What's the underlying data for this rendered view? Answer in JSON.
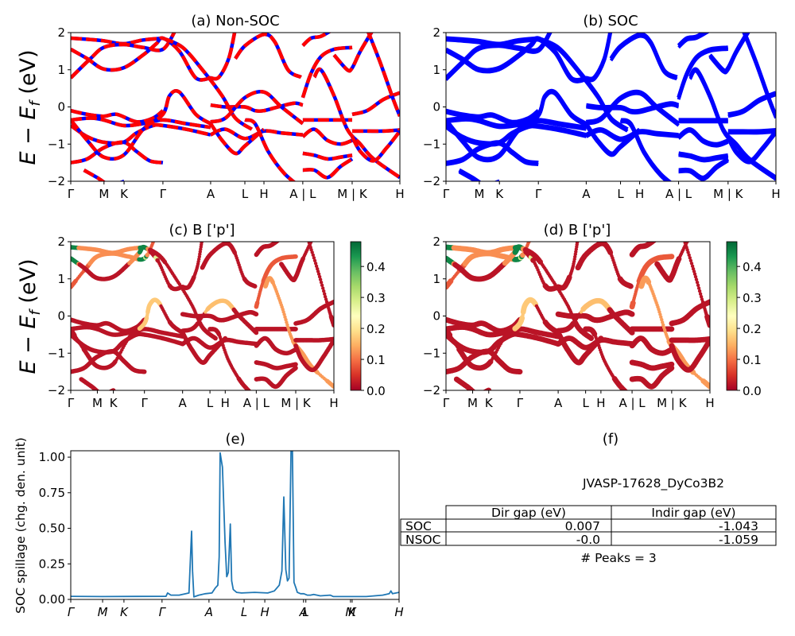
{
  "figure": {
    "material_id": "JVASP-17628_DyCo3B2",
    "peaks_text": "# Peaks = 3"
  },
  "chart_data": [
    {
      "id": "a",
      "type": "line",
      "title": "(a) Non-SOC",
      "ylabel": "E − E_f (eV)",
      "ylim": [
        -2,
        2
      ],
      "yticks": [
        -2,
        -1,
        0,
        1,
        2
      ],
      "ytick_labels": [
        "−2",
        "−1",
        "0",
        "1",
        "2"
      ],
      "xticks": [
        0,
        0.101,
        0.162,
        0.28,
        0.425,
        0.529,
        0.587,
        0.705,
        0.855,
        1.0
      ],
      "xtick_labels": [
        "Γ",
        "M",
        "K",
        "Γ",
        "A",
        "L",
        "H",
        "A | L",
        "M | K",
        "H"
      ],
      "style": "dashed red over blue",
      "colors": {
        "primary": "#ff0000",
        "secondary": "#0000ff"
      },
      "bands": [
        {
          "x": [
            0,
            0.05,
            0.1,
            0.16,
            0.22,
            0.28
          ],
          "y": [
            1.85,
            1.82,
            1.78,
            1.7,
            1.8,
            1.85
          ]
        },
        {
          "x": [
            0,
            0.06,
            0.1,
            0.16,
            0.22,
            0.28,
            0.32
          ],
          "y": [
            0.78,
            1.3,
            1.6,
            1.68,
            1.6,
            1.55,
            2.1
          ]
        },
        {
          "x": [
            0,
            0.05,
            0.1,
            0.16,
            0.22,
            0.26,
            0.28,
            0.33,
            0.38,
            0.425
          ],
          "y": [
            1.55,
            1.3,
            1.02,
            1.05,
            1.4,
            1.7,
            1.85,
            1.5,
            0.78,
            0.78
          ]
        },
        {
          "x": [
            0.28,
            0.34,
            0.4,
            0.46,
            0.5,
            0.55
          ],
          "y": [
            1.85,
            1.6,
            1.0,
            0.3,
            -0.3,
            -0.6
          ]
        },
        {
          "x": [
            0.425,
            0.45,
            0.48,
            0.5
          ],
          "y": [
            0.78,
            0.8,
            1.3,
            2.1
          ]
        },
        {
          "x": [
            0.5,
            0.53,
            0.587,
            0.62,
            0.66,
            0.7
          ],
          "y": [
            1.3,
            1.65,
            1.95,
            1.75,
            1.0,
            0.8
          ]
        },
        {
          "x": [
            0,
            0.05,
            0.1,
            0.14,
            0.2,
            0.25,
            0.28
          ],
          "y": [
            -0.1,
            -0.2,
            -0.25,
            -0.2,
            -0.4,
            -0.3,
            -0.1
          ]
        },
        {
          "x": [
            0,
            0.06,
            0.1,
            0.16,
            0.22,
            0.28,
            0.35,
            0.425
          ],
          "y": [
            -0.35,
            -0.3,
            -0.35,
            -0.5,
            -0.45,
            -0.35,
            -0.45,
            -0.55
          ]
        },
        {
          "x": [
            0,
            0.05,
            0.1,
            0.16,
            0.2,
            0.25,
            0.28,
            0.35,
            0.425
          ],
          "y": [
            -0.5,
            -0.8,
            -0.95,
            -0.95,
            -0.7,
            -0.5,
            -0.5,
            -0.6,
            -0.75
          ]
        },
        {
          "x": [
            0,
            0.05,
            0.1,
            0.16,
            0.22,
            0.28,
            0.3,
            0.33,
            0.38,
            0.425
          ],
          "y": [
            -0.35,
            -0.9,
            -1.35,
            -1.3,
            -0.6,
            -0.2,
            0.3,
            0.4,
            -0.2,
            -0.45
          ]
        },
        {
          "x": [
            0,
            0.05,
            0.1,
            0.16,
            0.2,
            0.24,
            0.28
          ],
          "y": [
            -1.5,
            -1.4,
            -1.1,
            -0.95,
            -1.2,
            -1.45,
            -1.5
          ]
        },
        {
          "x": [
            0.04,
            0.08,
            0.12,
            0.162
          ],
          "y": [
            -1.7,
            -1.9,
            -2.1,
            -2.0
          ]
        },
        {
          "x": [
            0.425,
            0.47,
            0.529,
            0.56,
            0.587,
            0.63,
            0.68,
            0.705
          ],
          "y": [
            0.05,
            0.0,
            0.0,
            -0.1,
            -0.1,
            0.0,
            0.1,
            0.05
          ]
        },
        {
          "x": [
            0.425,
            0.47,
            0.529,
            0.587,
            0.64,
            0.705
          ],
          "y": [
            -0.4,
            -0.3,
            0.25,
            0.4,
            0.0,
            -0.45
          ]
        },
        {
          "x": [
            0.425,
            0.47,
            0.529,
            0.587,
            0.64,
            0.705
          ],
          "y": [
            -0.75,
            -0.6,
            -0.85,
            -0.65,
            -0.7,
            -0.75
          ]
        },
        {
          "x": [
            0.425,
            0.46,
            0.5,
            0.529,
            0.587
          ],
          "y": [
            -0.45,
            -0.9,
            -1.25,
            -1.05,
            -0.6
          ]
        },
        {
          "x": [
            0.529,
            0.56,
            0.6,
            0.65,
            0.705
          ],
          "y": [
            -0.35,
            -0.45,
            -1.2,
            -1.8,
            -2.2
          ]
        },
        {
          "x": [
            0.705,
            0.74,
            0.78,
            0.82,
            0.855
          ],
          "y": [
            -0.35,
            -0.35,
            -0.35,
            -0.35,
            -0.35
          ]
        },
        {
          "x": [
            0.705,
            0.73,
            0.76,
            0.8,
            0.855
          ],
          "y": [
            0.25,
            0.9,
            1.35,
            1.55,
            1.6
          ]
        },
        {
          "x": [
            0.705,
            0.74,
            0.78,
            0.82,
            0.855
          ],
          "y": [
            -0.8,
            -0.6,
            -0.9,
            -1.0,
            -0.9
          ]
        },
        {
          "x": [
            0.705,
            0.74,
            0.78,
            0.82,
            0.855
          ],
          "y": [
            -1.25,
            -1.3,
            -1.4,
            -1.35,
            -1.3
          ]
        },
        {
          "x": [
            0.705,
            0.74,
            0.78,
            0.82,
            0.855
          ],
          "y": [
            -1.7,
            -1.7,
            -1.9,
            -1.6,
            -1.4
          ]
        },
        {
          "x": [
            0.74,
            0.76,
            0.8,
            0.84,
            0.88,
            0.92,
            1.0
          ],
          "y": [
            0.8,
            1.0,
            0.3,
            -0.6,
            -1.0,
            -1.4,
            -1.9
          ]
        },
        {
          "x": [
            0.855,
            0.9,
            0.95,
            1.0
          ],
          "y": [
            -0.2,
            -0.1,
            0.2,
            0.38
          ]
        },
        {
          "x": [
            0.855,
            0.9,
            0.95,
            1.0
          ],
          "y": [
            -0.65,
            -0.65,
            -0.65,
            -0.62
          ]
        },
        {
          "x": [
            0.855,
            0.88,
            0.92,
            0.96,
            1.0
          ],
          "y": [
            -0.8,
            -1.2,
            -1.45,
            -1.1,
            -0.65
          ]
        },
        {
          "x": [
            0.8,
            0.84,
            0.855,
            0.88,
            0.92
          ],
          "y": [
            1.4,
            1.0,
            1.05,
            1.5,
            2.1
          ]
        },
        {
          "x": [
            0.9,
            0.94,
            0.98,
            1.0
          ],
          "y": [
            2.1,
            1.2,
            0.2,
            -0.25
          ]
        },
        {
          "x": [
            0.705,
            0.73,
            0.76,
            0.8
          ],
          "y": [
            1.65,
            1.85,
            1.9,
            2.1
          ]
        }
      ]
    },
    {
      "id": "b",
      "type": "line",
      "title": "(b) SOC",
      "ylim": [
        -2,
        2
      ],
      "yticks": [
        -2,
        -1,
        0,
        1,
        2
      ],
      "ytick_labels": [
        "−2",
        "−1",
        "0",
        "1",
        "2"
      ],
      "xticks": [
        0,
        0.101,
        0.162,
        0.28,
        0.425,
        0.529,
        0.587,
        0.705,
        0.855,
        1.0
      ],
      "xtick_labels": [
        "Γ",
        "M",
        "K",
        "Γ",
        "A",
        "L",
        "H",
        "A | L",
        "M | K",
        "H"
      ],
      "color": "#0000ff",
      "bands_same_as": "a"
    },
    {
      "id": "c",
      "type": "scatter",
      "title": "(c)  B ['p']",
      "ylabel": "E − E_f (eV)",
      "ylim": [
        -2,
        2
      ],
      "yticks": [
        -2,
        -1,
        0,
        1,
        2
      ],
      "ytick_labels": [
        "−2",
        "−1",
        "0",
        "1",
        "2"
      ],
      "xticks": [
        0,
        0.101,
        0.162,
        0.28,
        0.425,
        0.529,
        0.587,
        0.705,
        0.855,
        1.0
      ],
      "xtick_labels": [
        "Γ",
        "M",
        "K",
        "Γ",
        "A",
        "L",
        "H",
        "A | L",
        "M | K",
        "H"
      ],
      "colormap": "RdYlGn",
      "colorbar": {
        "range": [
          0,
          0.48
        ],
        "ticks": [
          0.0,
          0.1,
          0.2,
          0.3,
          0.4
        ],
        "tick_labels": [
          "0.0",
          "0.1",
          "0.2",
          "0.3",
          "0.4"
        ]
      },
      "bands_same_as": "a"
    },
    {
      "id": "d",
      "type": "scatter",
      "title": "(d) B ['p']",
      "ylim": [
        -2,
        2
      ],
      "yticks": [
        -2,
        -1,
        0,
        1,
        2
      ],
      "ytick_labels": [
        "−2",
        "−1",
        "0",
        "1",
        "2"
      ],
      "xticks": [
        0,
        0.101,
        0.162,
        0.28,
        0.425,
        0.529,
        0.587,
        0.705,
        0.855,
        1.0
      ],
      "xtick_labels": [
        "Γ",
        "M",
        "K",
        "Γ",
        "A",
        "L",
        "H",
        "A | L",
        "M | K",
        "H"
      ],
      "colormap": "RdYlGn",
      "colorbar": {
        "range": [
          0,
          0.48
        ],
        "ticks": [
          0.0,
          0.1,
          0.2,
          0.3,
          0.4
        ],
        "tick_labels": [
          "0.0",
          "0.1",
          "0.2",
          "0.3",
          "0.4"
        ]
      },
      "bands_same_as": "a"
    },
    {
      "id": "e",
      "type": "line",
      "title": "(e)",
      "ylabel": "SOC spillage (chg. den. unit)",
      "ylim": [
        0,
        1.045
      ],
      "yticks": [
        0,
        0.25,
        0.5,
        0.75,
        1.0
      ],
      "ytick_labels": [
        "0.00",
        "0.25",
        "0.50",
        "0.75",
        "1.00"
      ],
      "xticks": [
        0,
        0.097,
        0.162,
        0.278,
        0.421,
        0.528,
        0.591,
        0.709,
        0.716,
        0.852,
        0.857,
        1.0
      ],
      "xtick_labels": [
        "Γ",
        "M",
        "K",
        "Γ",
        "A",
        "L",
        "H",
        "A",
        "L",
        "M",
        "K",
        "H"
      ],
      "color": "#1f77b4",
      "x": [
        0,
        0.1,
        0.2,
        0.29,
        0.295,
        0.305,
        0.33,
        0.36,
        0.368,
        0.371,
        0.375,
        0.378,
        0.39,
        0.41,
        0.43,
        0.44,
        0.448,
        0.452,
        0.455,
        0.462,
        0.47,
        0.475,
        0.48,
        0.486,
        0.49,
        0.495,
        0.505,
        0.52,
        0.56,
        0.6,
        0.62,
        0.635,
        0.643,
        0.649,
        0.655,
        0.66,
        0.665,
        0.671,
        0.675,
        0.68,
        0.686,
        0.69,
        0.7,
        0.71,
        0.72,
        0.73,
        0.74,
        0.76,
        0.79,
        0.8,
        0.82,
        0.9,
        0.95,
        0.97,
        0.975,
        0.98,
        1.0
      ],
      "y": [
        0.022,
        0.02,
        0.021,
        0.022,
        0.045,
        0.03,
        0.03,
        0.045,
        0.48,
        0.2,
        0.018,
        0.02,
        0.03,
        0.04,
        0.045,
        0.08,
        0.1,
        0.3,
        1.03,
        0.93,
        0.4,
        0.16,
        0.19,
        0.53,
        0.13,
        0.07,
        0.05,
        0.045,
        0.05,
        0.045,
        0.06,
        0.1,
        0.2,
        0.72,
        0.21,
        0.13,
        0.15,
        1.05,
        1.05,
        0.12,
        0.08,
        0.05,
        0.04,
        0.04,
        0.03,
        0.03,
        0.035,
        0.025,
        0.03,
        0.02,
        0.02,
        0.02,
        0.03,
        0.04,
        0.06,
        0.04,
        0.05
      ]
    },
    {
      "id": "f",
      "type": "table",
      "title": "(f)",
      "columns": [
        "",
        "Dir gap (eV)",
        "Indir gap (eV)"
      ],
      "rows": [
        [
          "SOC",
          "0.007",
          "-1.043"
        ],
        [
          "NSOC",
          "-0.0",
          "-1.059"
        ]
      ]
    }
  ]
}
